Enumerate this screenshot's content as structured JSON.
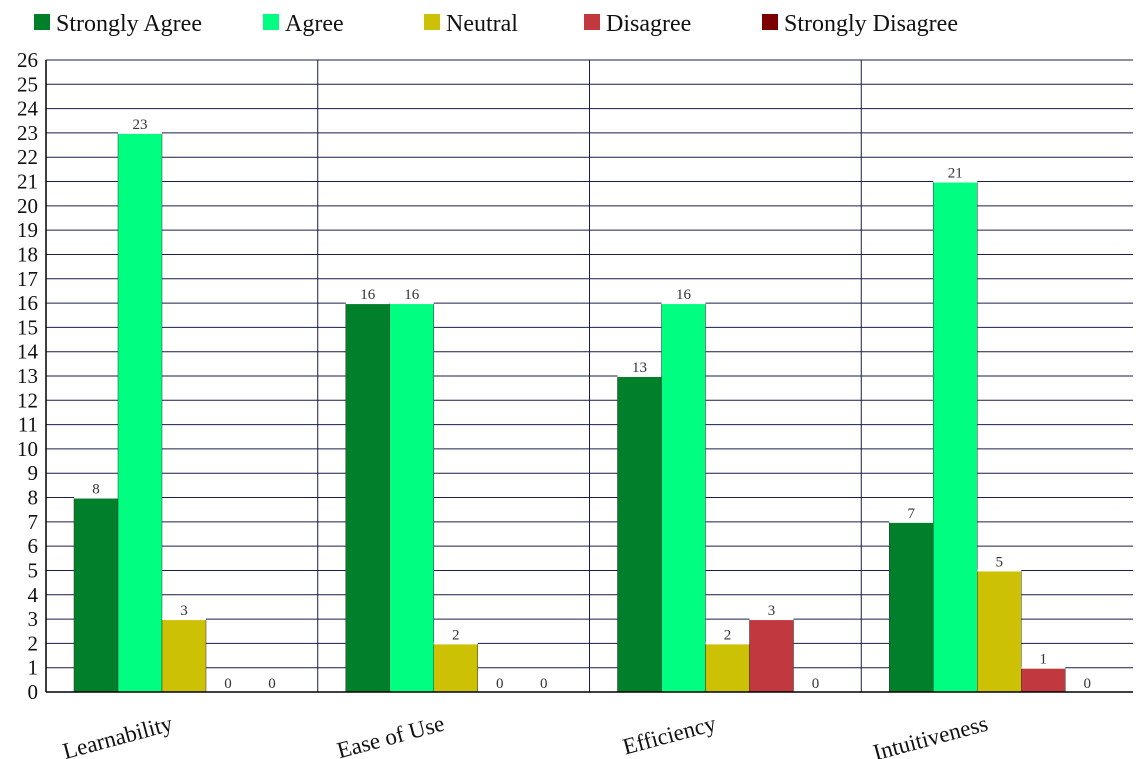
{
  "chart_data": {
    "type": "bar",
    "categories": [
      "Learnability",
      "Ease of Use",
      "Efficiency",
      "Intuitiveness"
    ],
    "series": [
      {
        "name": "Strongly Agree",
        "color": "#027f2b",
        "values": [
          8,
          16,
          13,
          7
        ]
      },
      {
        "name": "Agree",
        "color": "#00ff80",
        "values": [
          23,
          16,
          16,
          21
        ]
      },
      {
        "name": "Neutral",
        "color": "#cdc105",
        "values": [
          3,
          2,
          2,
          5
        ]
      },
      {
        "name": "Disagree",
        "color": "#c1393e",
        "values": [
          0,
          0,
          3,
          1
        ]
      },
      {
        "name": "Strongly Disagree",
        "color": "#7d0000",
        "values": [
          0,
          0,
          0,
          0
        ]
      }
    ],
    "ylim": [
      0,
      26
    ],
    "y_ticks": [
      0,
      1,
      2,
      3,
      4,
      5,
      6,
      7,
      8,
      9,
      10,
      11,
      12,
      13,
      14,
      15,
      16,
      17,
      18,
      19,
      20,
      21,
      22,
      23,
      24,
      25,
      26
    ],
    "grid": true,
    "legend": "top",
    "data_labels": true
  }
}
